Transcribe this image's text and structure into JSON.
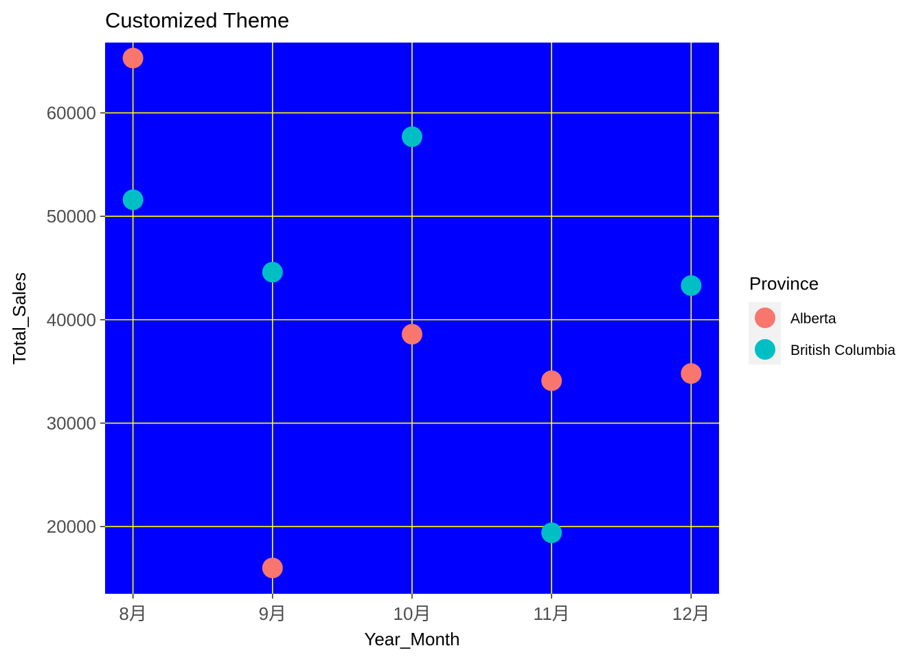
{
  "chart_data": {
    "type": "scatter",
    "title": "Customized Theme",
    "xlabel": "Year_Month",
    "ylabel": "Total_Sales",
    "categories": [
      "8月",
      "9月",
      "10月",
      "11月",
      "12月"
    ],
    "x_values": [
      8,
      9,
      10,
      11,
      12
    ],
    "y_ticks": [
      20000,
      30000,
      40000,
      50000,
      60000
    ],
    "ylim": [
      13500,
      66800
    ],
    "grid": true,
    "legend_position": "right",
    "legend_title": "Province",
    "series": [
      {
        "name": "Alberta",
        "color": "#F8766D",
        "values": [
          65300,
          16000,
          38600,
          34100,
          34800
        ]
      },
      {
        "name": "British Columbia",
        "color": "#00BFC4",
        "values": [
          51600,
          44600,
          57700,
          19400,
          43300
        ]
      }
    ],
    "colors": {
      "panel_background": "#0000FF",
      "grid_lines": "#FFFF00",
      "legend_key_background": "#F2F2F2"
    }
  }
}
